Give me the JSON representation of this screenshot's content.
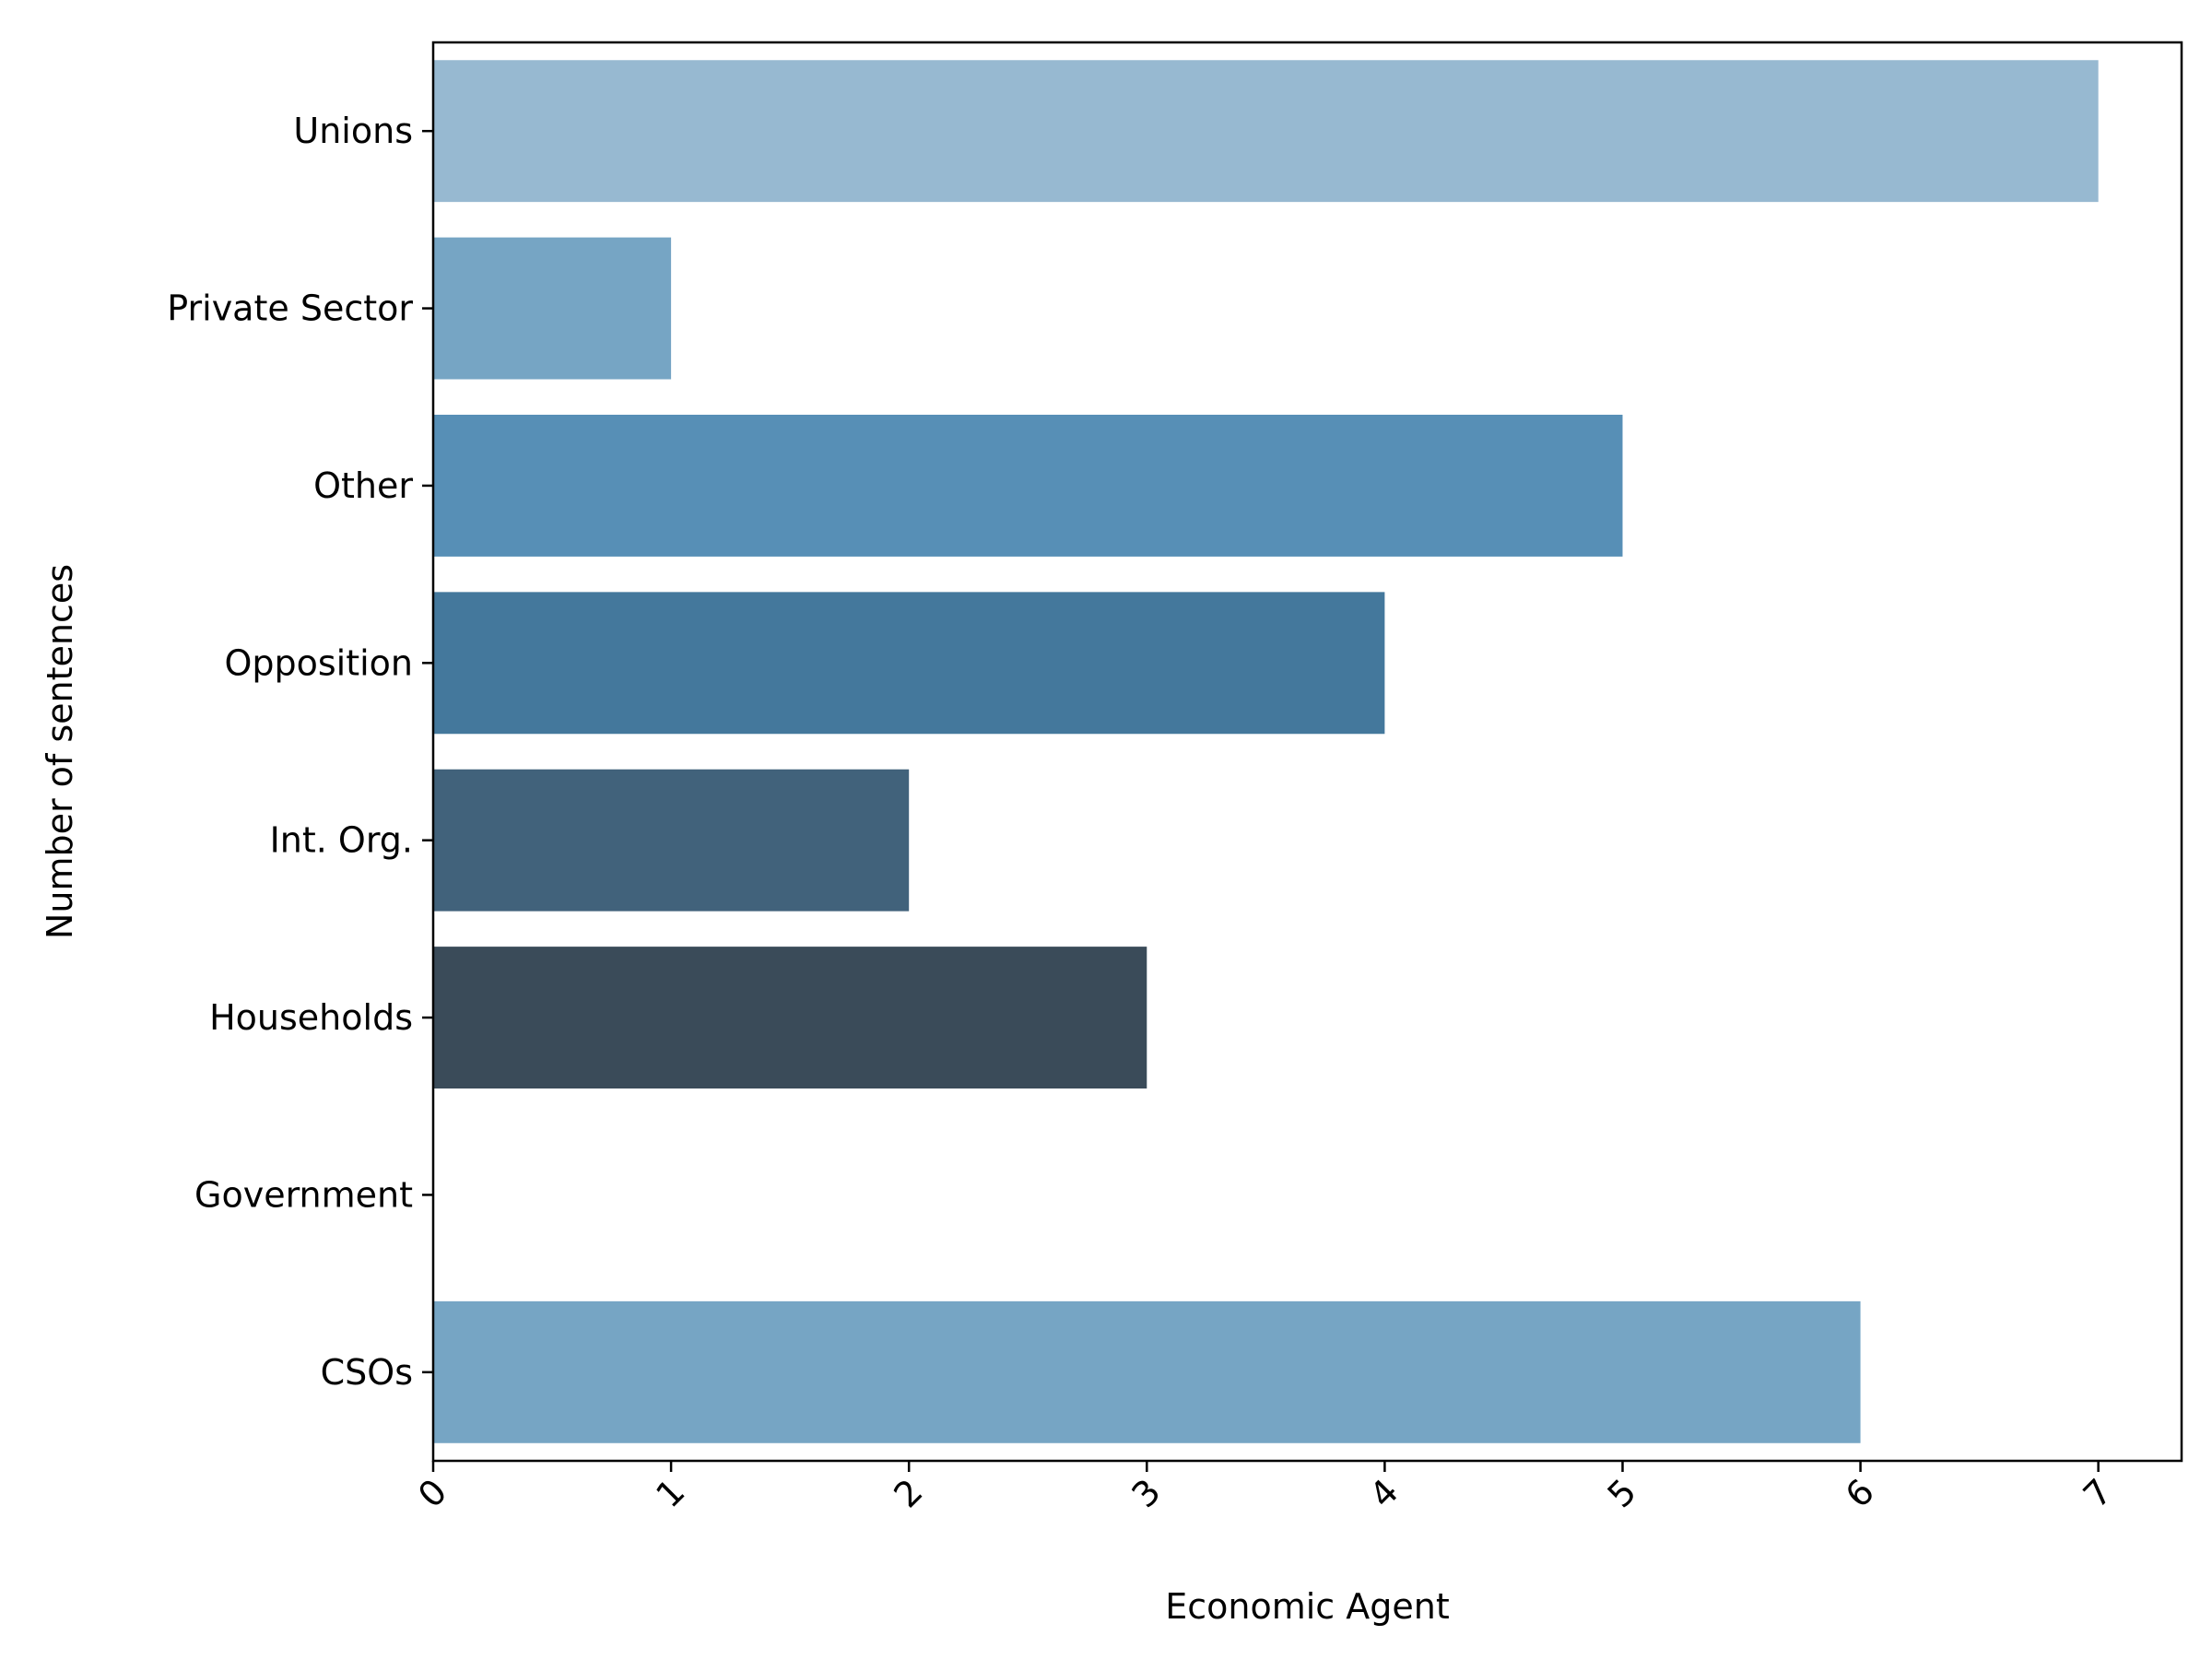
{
  "chart_data": {
    "type": "bar",
    "orientation": "horizontal",
    "categories": [
      "Unions",
      "Private Sector",
      "Other",
      "Opposition",
      "Int. Org.",
      "Households",
      "Government",
      "CSOs"
    ],
    "values": [
      7,
      1,
      5,
      4,
      2,
      3,
      0,
      6
    ],
    "colors": [
      "#97b9d1",
      "#76a5c4",
      "#578fb6",
      "#44789c",
      "#41627b",
      "#3a4b59",
      "#2d3338",
      "#76a5c4"
    ],
    "xlabel": "Economic Agent",
    "ylabel": "Number of sentences",
    "xlim": [
      0,
      7.35
    ],
    "xticks": [
      "0",
      "1",
      "2",
      "3",
      "4",
      "5",
      "6",
      "7"
    ],
    "grid": false,
    "legend": "none"
  }
}
